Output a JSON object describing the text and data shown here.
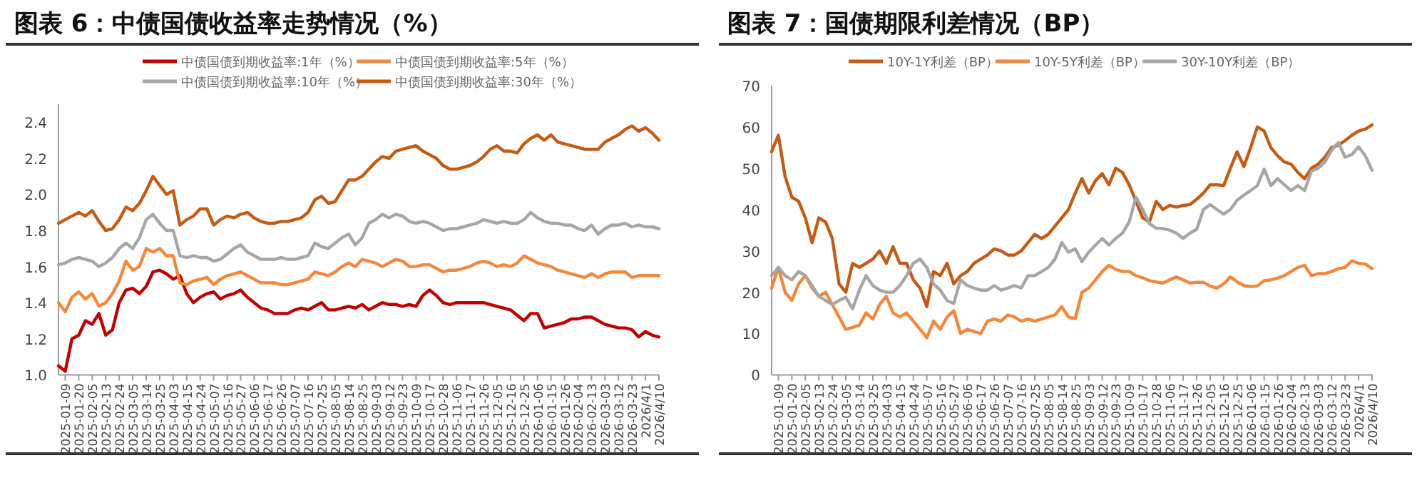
{
  "chart_data": [
    {
      "type": "line",
      "title": "图表 6：中债国债收益率走势情况（%）",
      "legend": "top",
      "categories": [
        null,
        "2025-01-09",
        null,
        "2025-01-20",
        null,
        "2025-02-05",
        null,
        "2025-02-13",
        null,
        "2025-02-24",
        null,
        "2025-03-05",
        null,
        "2025-03-14",
        null,
        "2025-03-25",
        null,
        "2025-04-03",
        null,
        "2025-04-15",
        null,
        "2025-04-24",
        null,
        "2025-05-07",
        null,
        "2025-05-16",
        null,
        "2025-05-27",
        null,
        "2025-06-06",
        null,
        "2025-06-17",
        null,
        "2025-06-26",
        null,
        "2025-07-07",
        null,
        "2025-07-16",
        null,
        "2025-07-25",
        null,
        "2025-08-05",
        null,
        "2025-08-14",
        null,
        "2025-08-25",
        null,
        "2025-09-03",
        null,
        "2025-09-12",
        null,
        "2025-09-23",
        null,
        "2025-10-09",
        null,
        "2025-10-17",
        null,
        "2025-10-28",
        null,
        "2025-11-06",
        null,
        "2025-11-17",
        null,
        "2025-11-26",
        null,
        "2025-12-05",
        null,
        "2025-12-16",
        null,
        "2025-12-25",
        null,
        "2026-01-06",
        null,
        "2026-01-15",
        null,
        "2026-01-26",
        null,
        "2026-02-04",
        null,
        "2026-02-13",
        null,
        "2026-03-03",
        null,
        "2026-03-12",
        null,
        "2026-03-23",
        null,
        "2026/4/1",
        null,
        "2026/4/10"
      ],
      "ylim": [
        1.0,
        2.5
      ],
      "yticks": [
        {
          "value": 1,
          "label": "1.0"
        },
        1.2,
        1.4,
        1.6,
        1.8,
        {
          "value": 2,
          "label": "2.0"
        },
        2.2,
        2.4
      ],
      "series": [
        {
          "name": "中债国债到期收益率:1年（%）",
          "color": "#c00000",
          "values": [
            1.05,
            1.02,
            1.2,
            1.22,
            1.3,
            1.28,
            1.34,
            1.22,
            1.25,
            1.4,
            1.47,
            1.48,
            1.45,
            1.49,
            1.57,
            1.58,
            1.56,
            1.53,
            1.55,
            1.45,
            1.4,
            1.43,
            1.45,
            1.46,
            1.42,
            1.44,
            1.45,
            1.47,
            1.43,
            1.4,
            1.37,
            1.36,
            1.34,
            1.34,
            1.34,
            1.36,
            1.37,
            1.36,
            1.38,
            1.4,
            1.36,
            1.36,
            1.37,
            1.38,
            1.37,
            1.39,
            1.36,
            1.38,
            1.4,
            1.39,
            1.39,
            1.38,
            1.39,
            1.38,
            1.44,
            1.47,
            1.44,
            1.4,
            1.39,
            1.4,
            1.4,
            1.4,
            1.4,
            1.4,
            1.39,
            1.38,
            1.37,
            1.36,
            1.33,
            1.3,
            1.34,
            1.34,
            1.26,
            1.27,
            1.28,
            1.29,
            1.31,
            1.31,
            1.32,
            1.32,
            1.3,
            1.28,
            1.27,
            1.26,
            1.26,
            1.25,
            1.21,
            1.24,
            1.22,
            1.21
          ]
        },
        {
          "name": "中债国债到期收益率:5年（%）",
          "color": "#f4873a",
          "values": [
            1.4,
            1.35,
            1.43,
            1.46,
            1.42,
            1.45,
            1.38,
            1.4,
            1.45,
            1.52,
            1.63,
            1.58,
            1.6,
            1.7,
            1.68,
            1.7,
            1.66,
            1.66,
            1.51,
            1.5,
            1.52,
            1.53,
            1.54,
            1.5,
            1.53,
            1.55,
            1.56,
            1.57,
            1.55,
            1.53,
            1.51,
            1.51,
            1.51,
            1.5,
            1.5,
            1.51,
            1.52,
            1.53,
            1.57,
            1.56,
            1.55,
            1.57,
            1.6,
            1.62,
            1.6,
            1.64,
            1.63,
            1.62,
            1.6,
            1.62,
            1.64,
            1.63,
            1.6,
            1.6,
            1.61,
            1.61,
            1.59,
            1.57,
            1.58,
            1.58,
            1.59,
            1.6,
            1.62,
            1.63,
            1.62,
            1.6,
            1.61,
            1.6,
            1.62,
            1.66,
            1.64,
            1.62,
            1.61,
            1.6,
            1.58,
            1.57,
            1.56,
            1.55,
            1.54,
            1.56,
            1.54,
            1.56,
            1.57,
            1.57,
            1.57,
            1.54,
            1.55,
            1.55,
            1.55,
            1.55
          ]
        },
        {
          "name": "中债国债到期收益率:10年（%）",
          "color": "#a6a6a6",
          "values": [
            1.61,
            1.62,
            1.64,
            1.65,
            1.64,
            1.63,
            1.6,
            1.62,
            1.65,
            1.7,
            1.73,
            1.7,
            1.76,
            1.86,
            1.89,
            1.84,
            1.8,
            1.8,
            1.66,
            1.65,
            1.66,
            1.65,
            1.65,
            1.63,
            1.64,
            1.67,
            1.7,
            1.72,
            1.68,
            1.66,
            1.64,
            1.64,
            1.64,
            1.65,
            1.64,
            1.64,
            1.65,
            1.66,
            1.73,
            1.71,
            1.7,
            1.73,
            1.76,
            1.78,
            1.72,
            1.76,
            1.84,
            1.86,
            1.89,
            1.87,
            1.89,
            1.88,
            1.85,
            1.84,
            1.85,
            1.84,
            1.82,
            1.8,
            1.81,
            1.81,
            1.82,
            1.83,
            1.84,
            1.86,
            1.85,
            1.84,
            1.85,
            1.84,
            1.84,
            1.86,
            1.9,
            1.87,
            1.85,
            1.84,
            1.84,
            1.83,
            1.83,
            1.81,
            1.8,
            1.83,
            1.78,
            1.81,
            1.83,
            1.83,
            1.84,
            1.82,
            1.83,
            1.82,
            1.82,
            1.81
          ]
        },
        {
          "name": "中债国债到期收益率:30年（%）",
          "color": "#c55a11",
          "values": [
            1.84,
            1.86,
            1.88,
            1.9,
            1.88,
            1.91,
            1.85,
            1.8,
            1.81,
            1.86,
            1.93,
            1.91,
            1.95,
            2.02,
            2.1,
            2.05,
            2.0,
            2.02,
            1.83,
            1.86,
            1.88,
            1.92,
            1.92,
            1.83,
            1.86,
            1.88,
            1.87,
            1.89,
            1.9,
            1.87,
            1.85,
            1.84,
            1.84,
            1.85,
            1.85,
            1.86,
            1.87,
            1.9,
            1.97,
            1.99,
            1.95,
            1.96,
            2.02,
            2.08,
            2.08,
            2.1,
            2.14,
            2.18,
            2.21,
            2.2,
            2.24,
            2.25,
            2.26,
            2.27,
            2.24,
            2.22,
            2.2,
            2.16,
            2.14,
            2.14,
            2.15,
            2.16,
            2.18,
            2.21,
            2.25,
            2.27,
            2.24,
            2.24,
            2.23,
            2.28,
            2.31,
            2.33,
            2.3,
            2.33,
            2.29,
            2.28,
            2.27,
            2.26,
            2.25,
            2.25,
            2.25,
            2.29,
            2.31,
            2.33,
            2.36,
            2.38,
            2.35,
            2.37,
            2.34,
            2.3
          ]
        }
      ]
    },
    {
      "type": "line",
      "title": "图表 7：国债期限利差情况（BP）",
      "legend": "top",
      "categories": [
        null,
        "2025-01-09",
        null,
        "2025-01-20",
        null,
        "2025-02-05",
        null,
        "2025-02-13",
        null,
        "2025-02-24",
        null,
        "2025-03-05",
        null,
        "2025-03-14",
        null,
        "2025-03-25",
        null,
        "2025-04-03",
        null,
        "2025-04-15",
        null,
        "2025-04-24",
        null,
        "2025-05-07",
        null,
        "2025-05-16",
        null,
        "2025-05-27",
        null,
        "2025-06-06",
        null,
        "2025-06-17",
        null,
        "2025-06-26",
        null,
        "2025-07-07",
        null,
        "2025-07-16",
        null,
        "2025-07-25",
        null,
        "2025-08-05",
        null,
        "2025-08-14",
        null,
        "2025-08-25",
        null,
        "2025-09-03",
        null,
        "2025-09-12",
        null,
        "2025-09-23",
        null,
        "2025-10-09",
        null,
        "2025-10-17",
        null,
        "2025-10-28",
        null,
        "2025-11-06",
        null,
        "2025-11-17",
        null,
        "2025-11-26",
        null,
        "2025-12-05",
        null,
        "2025-12-16",
        null,
        "2025-12-25",
        null,
        "2026-01-06",
        null,
        "2026-01-15",
        null,
        "2026-01-26",
        null,
        "2026-02-04",
        null,
        "2026-02-13",
        null,
        "2026-03-03",
        null,
        "2026-03-12",
        null,
        "2026-03-23",
        null,
        "2026/4/1",
        null,
        "2026/4/10"
      ],
      "ylim": [
        0,
        70
      ],
      "yticks": [
        0,
        10,
        20,
        30,
        40,
        50,
        60,
        70
      ],
      "series": [
        {
          "name": "10Y-1Y利差（BP）",
          "color": "#c55a11",
          "values": [
            54,
            58,
            48,
            43,
            42,
            38,
            32,
            38,
            37,
            33,
            22,
            20,
            27,
            26,
            27,
            28,
            30,
            27,
            31,
            27,
            27,
            23,
            21,
            16.5,
            25,
            24,
            27,
            22,
            24,
            25,
            27,
            28,
            29,
            30.5,
            30,
            29,
            29,
            30,
            32,
            34,
            33,
            34,
            36,
            38,
            40,
            44,
            47.5,
            44,
            47,
            48.7,
            46,
            50,
            49,
            46,
            42,
            38,
            37,
            42,
            40,
            41,
            40.6,
            41,
            41.2,
            42.5,
            44,
            46,
            46,
            45.8,
            50,
            54,
            50.4,
            55,
            60,
            59,
            55,
            53,
            51.5,
            51,
            49,
            47.5,
            50,
            51,
            52.7,
            55,
            55.6,
            56.7,
            58,
            59,
            59.5,
            60.5
          ]
        },
        {
          "name": "10Y-5Y利差（BP）",
          "color": "#f4873a",
          "values": [
            21,
            26,
            20,
            18,
            22,
            24,
            21,
            19,
            20,
            17,
            14,
            11,
            11.5,
            12,
            15,
            13.5,
            17,
            19,
            15,
            14,
            15,
            13,
            11,
            9,
            13,
            11,
            14,
            15.5,
            10,
            11,
            10.5,
            10,
            13,
            13.5,
            13,
            14.5,
            14,
            13,
            13.5,
            13,
            13.5,
            14,
            14.5,
            16.5,
            14,
            13.6,
            20,
            21,
            23,
            25,
            26.5,
            25.5,
            25,
            25,
            24,
            23.5,
            22.8,
            22.5,
            22.2,
            23,
            23.7,
            23,
            22.2,
            22.4,
            22.4,
            21.5,
            21,
            22,
            23.7,
            22.5,
            21.6,
            21.4,
            21.5,
            22.8,
            23,
            23.4,
            24,
            25,
            26,
            26.5,
            24,
            24.5,
            24.5,
            25,
            25.7,
            26,
            27.6,
            27,
            26.8,
            25.7
          ]
        },
        {
          "name": "30Y-10Y利差（BP）",
          "color": "#a6a6a6",
          "values": [
            24,
            26,
            24,
            23,
            25,
            24,
            21.6,
            19,
            18,
            17,
            18,
            18.8,
            16,
            20.5,
            24,
            21.6,
            20.5,
            20,
            20,
            21.6,
            24,
            27,
            28,
            26,
            22,
            20.5,
            18,
            17.3,
            23,
            21.6,
            21,
            20.5,
            20.5,
            21.6,
            20.5,
            21,
            21.6,
            21,
            24,
            24,
            25,
            26,
            28,
            32,
            29.7,
            30.5,
            27.4,
            29.7,
            31.4,
            33,
            31.4,
            33,
            34.3,
            37,
            43,
            40,
            36.6,
            35.5,
            35.4,
            35,
            34.3,
            33,
            34.3,
            35.2,
            40,
            41.2,
            40,
            38.9,
            40,
            42.3,
            43.5,
            44.6,
            45.8,
            49.8,
            45.8,
            47.5,
            46,
            44.6,
            45.8,
            44.6,
            49.3,
            50,
            51.5,
            54.4,
            56.2,
            52.7,
            53.3,
            55.2,
            53,
            49.5
          ]
        }
      ]
    }
  ]
}
